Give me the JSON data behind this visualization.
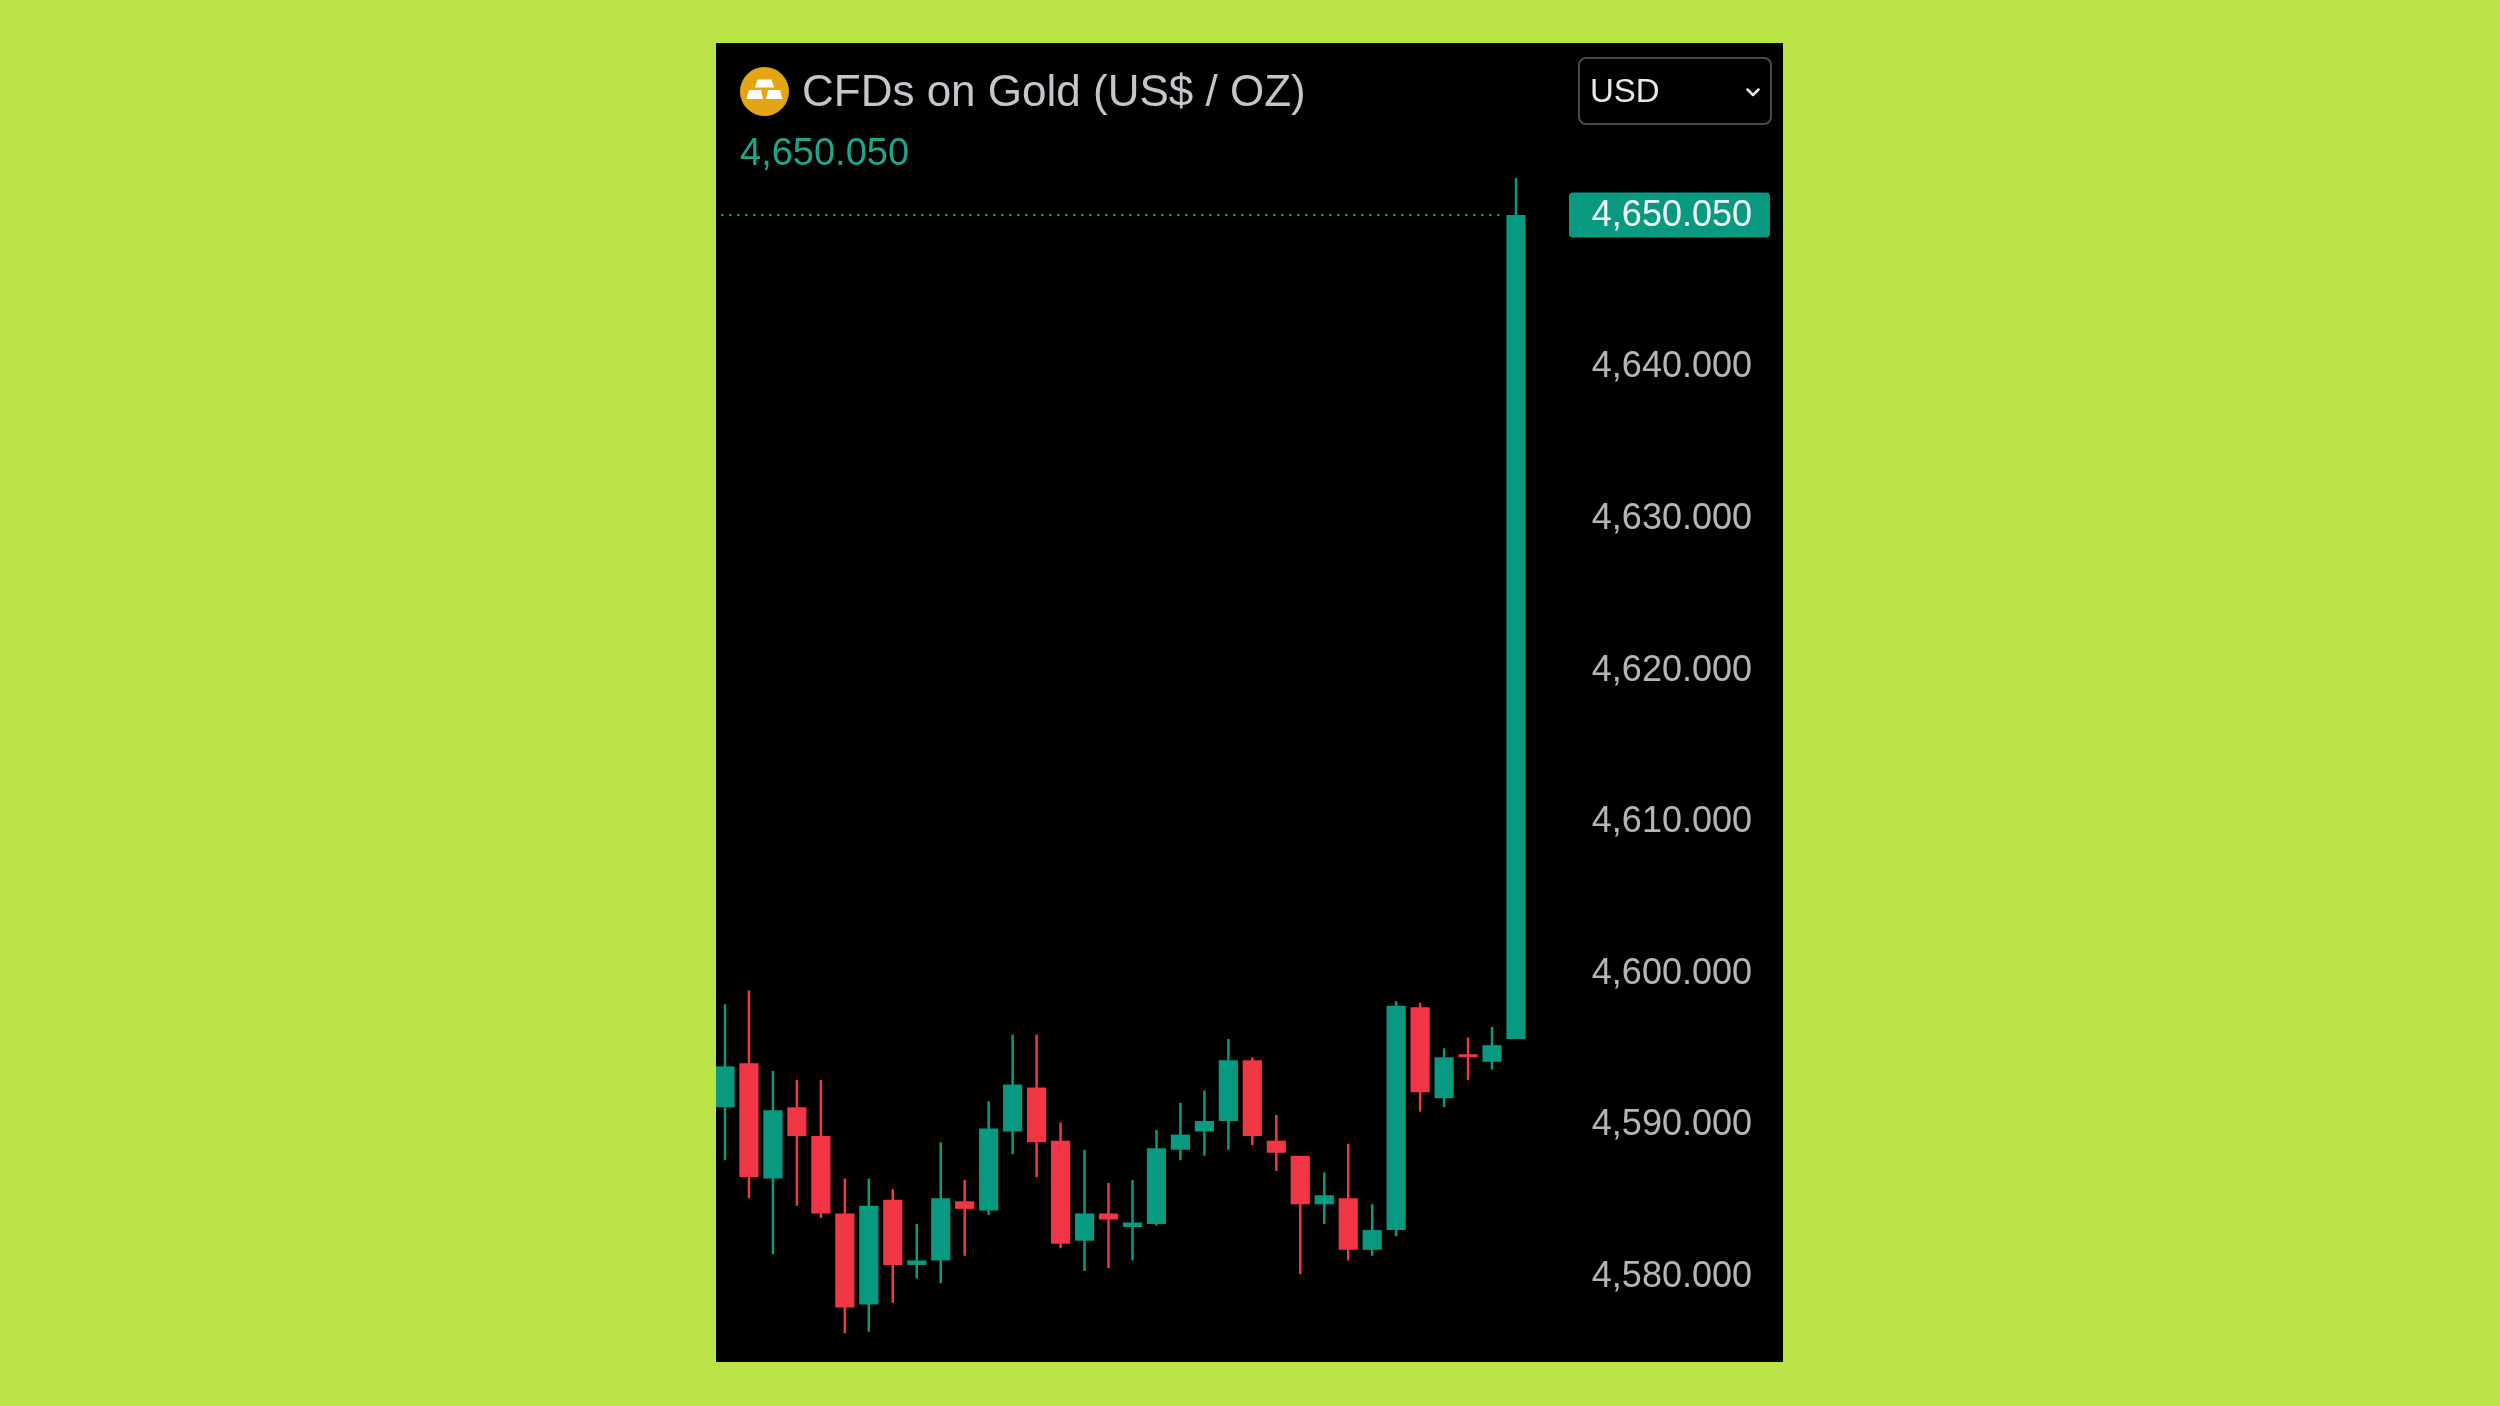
{
  "chart_data": {
    "type": "candlestick",
    "title": "CFDs on Gold (US$ / OZ)",
    "subtitle": "4,650.050",
    "annotations": [
      "USD"
    ],
    "categories": [
      null,
      null,
      null,
      null,
      null,
      null,
      null,
      null,
      null,
      null,
      null,
      null,
      null,
      null,
      null,
      null,
      null,
      null,
      null,
      null,
      null,
      null,
      null,
      null,
      null,
      null,
      null,
      null,
      null,
      null,
      null,
      null,
      null,
      null
    ],
    "ohlc": [
      [
        4591.2,
        4598.0,
        4587.7,
        4593.9
      ],
      [
        4594.1,
        4598.9,
        4585.2,
        4586.6
      ],
      [
        4586.5,
        4593.6,
        4581.5,
        4591.0
      ],
      [
        4591.2,
        4593.0,
        4584.7,
        4589.3
      ],
      [
        4589.3,
        4593.0,
        4583.9,
        4584.2
      ],
      [
        4584.2,
        4586.5,
        4576.3,
        4578.0
      ],
      [
        4578.2,
        4586.5,
        4576.4,
        4584.7
      ],
      [
        4585.1,
        4585.8,
        4578.3,
        4580.8
      ],
      [
        4580.8,
        4583.5,
        4579.9,
        4581.1
      ],
      [
        4581.1,
        4588.9,
        4579.6,
        4585.2
      ],
      [
        4585.0,
        4586.4,
        4581.4,
        4584.5
      ],
      [
        4584.4,
        4591.6,
        4584.1,
        4589.8
      ],
      [
        4589.6,
        4596.0,
        4588.1,
        4592.7
      ],
      [
        4592.5,
        4596.0,
        4586.6,
        4588.9
      ],
      [
        4589.0,
        4590.2,
        4581.9,
        4582.2
      ],
      [
        4582.4,
        4588.4,
        4580.4,
        4584.2
      ],
      [
        4584.2,
        4586.2,
        4580.6,
        4583.8
      ],
      [
        4583.3,
        4586.4,
        4581.1,
        4583.6
      ],
      [
        4583.5,
        4589.7,
        4583.4,
        4588.5
      ],
      [
        4588.4,
        4591.5,
        4587.7,
        4589.4
      ],
      [
        4589.6,
        4592.3,
        4588.0,
        4590.3
      ],
      [
        4590.3,
        4595.7,
        4588.4,
        4594.3
      ],
      [
        4594.3,
        4594.5,
        4588.7,
        4589.3
      ],
      [
        4589.0,
        4590.7,
        4587.0,
        4588.2
      ],
      [
        4588.0,
        4588.0,
        4580.2,
        4584.8
      ],
      [
        4584.8,
        4586.9,
        4583.5,
        4585.4
      ],
      [
        4585.2,
        4588.8,
        4581.1,
        4581.8
      ],
      [
        4581.8,
        4584.8,
        4581.4,
        4583.1
      ],
      [
        4583.1,
        4598.2,
        4582.7,
        4597.9
      ],
      [
        4597.8,
        4598.1,
        4590.9,
        4592.2
      ],
      [
        4591.8,
        4595.1,
        4591.2,
        4594.5
      ],
      [
        4594.7,
        4595.8,
        4593.0,
        4594.5
      ],
      [
        4594.2,
        4596.5,
        4593.7,
        4595.3
      ],
      [
        4595.7,
        4652.5,
        4595.7,
        4650.05
      ]
    ],
    "colors": [
      "#089981",
      "#f23645",
      "#089981",
      "#f23645",
      "#f23645",
      "#f23645",
      "#089981",
      "#f23645",
      "#089981",
      "#089981",
      "#f23645",
      "#089981",
      "#089981",
      "#f23645",
      "#f23645",
      "#089981",
      "#f23645",
      "#089981",
      "#089981",
      "#089981",
      "#089981",
      "#089981",
      "#f23645",
      "#f23645",
      "#f23645",
      "#089981",
      "#f23645",
      "#089981",
      "#089981",
      "#f23645",
      "#089981",
      "#f23645",
      "#089981",
      "#089981"
    ],
    "ylim": [
      4574.4,
      4661.4
    ],
    "yticks": [
      {
        "value": 4580,
        "label": "4,580.000"
      },
      {
        "value": 4590,
        "label": "4,590.000"
      },
      {
        "value": 4600,
        "label": "4,600.000"
      },
      {
        "value": 4610,
        "label": "4,610.000"
      },
      {
        "value": 4620,
        "label": "4,620.000"
      },
      {
        "value": 4630,
        "label": "4,630.000"
      },
      {
        "value": 4640,
        "label": "4,640.000"
      }
    ],
    "ref_lines": [
      {
        "axis": "y",
        "value": 4650.05,
        "label": "4,650.050",
        "color": "#089981",
        "line_style": "dotted"
      }
    ],
    "tick_labels": "y"
  }
}
